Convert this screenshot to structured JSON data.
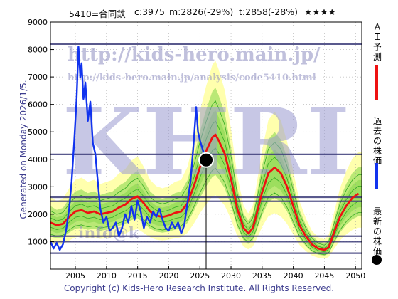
{
  "header": {
    "code_name": "5410=合同鉄",
    "current": "c:3975",
    "min_prediction": "m:2826(-29%)",
    "target": "t:2858(-28%)",
    "rating": "★★★★"
  },
  "generated_label": "Generated on Monday 2026/1/5.",
  "copyright": "Copyright (c) Kids-Hero Research Institute. All Rights Reserved.",
  "watermarks": {
    "url": "http://kids-hero.main.jp/",
    "analysis_url": "http://kids-hero.main.jp/analysis/code5410.html",
    "big_letters": "KHRI",
    "info": "info@k"
  },
  "legend": {
    "ai_label": "ＡＩ予測",
    "past_label": "過去の株価",
    "latest_label": "最新の株価"
  },
  "colors": {
    "ai": "#ee1111",
    "past": "#1133ee",
    "latest": "#000000",
    "bands": "#66cc33",
    "yellow": "#ffff99",
    "hlines": "#3d3d7a",
    "watermark": "#8d8dc0"
  },
  "chart_data": {
    "type": "line",
    "xlim": [
      2001,
      2051
    ],
    "ylim": [
      0,
      9000
    ],
    "x_ticks": [
      2005,
      2010,
      2015,
      2020,
      2025,
      2030,
      2035,
      2040,
      2045,
      2050
    ],
    "y_ticks": [
      1000,
      2000,
      3000,
      4000,
      5000,
      6000,
      7000,
      8000,
      9000
    ],
    "horizontal_lines": [
      8200,
      4180,
      2620,
      2470,
      1200,
      1000,
      580
    ],
    "latest_point": {
      "x": 2026.0,
      "y": 3975
    },
    "past_price": [
      [
        2001.0,
        1000
      ],
      [
        2001.5,
        750
      ],
      [
        2002.0,
        950
      ],
      [
        2002.5,
        700
      ],
      [
        2003.0,
        900
      ],
      [
        2003.5,
        1400
      ],
      [
        2004.0,
        2200
      ],
      [
        2004.4,
        3200
      ],
      [
        2004.8,
        4600
      ],
      [
        2005.2,
        6200
      ],
      [
        2005.5,
        8100
      ],
      [
        2005.8,
        7000
      ],
      [
        2006.0,
        7500
      ],
      [
        2006.3,
        6200
      ],
      [
        2006.6,
        6800
      ],
      [
        2007.0,
        5400
      ],
      [
        2007.4,
        6100
      ],
      [
        2007.8,
        4600
      ],
      [
        2008.2,
        4200
      ],
      [
        2008.6,
        3200
      ],
      [
        2009.0,
        2200
      ],
      [
        2009.5,
        1700
      ],
      [
        2010.0,
        1900
      ],
      [
        2010.5,
        1400
      ],
      [
        2011.0,
        1500
      ],
      [
        2011.5,
        1700
      ],
      [
        2012.0,
        1200
      ],
      [
        2012.5,
        1500
      ],
      [
        2013.0,
        2000
      ],
      [
        2013.5,
        1700
      ],
      [
        2014.0,
        2300
      ],
      [
        2014.5,
        1800
      ],
      [
        2015.0,
        2500
      ],
      [
        2015.5,
        2100
      ],
      [
        2016.0,
        1500
      ],
      [
        2016.5,
        1900
      ],
      [
        2017.0,
        1700
      ],
      [
        2017.5,
        2100
      ],
      [
        2018.0,
        1900
      ],
      [
        2018.5,
        2200
      ],
      [
        2019.0,
        1800
      ],
      [
        2019.5,
        1500
      ],
      [
        2020.0,
        1400
      ],
      [
        2020.5,
        1700
      ],
      [
        2021.0,
        1500
      ],
      [
        2021.5,
        1700
      ],
      [
        2022.0,
        1300
      ],
      [
        2022.5,
        1600
      ],
      [
        2023.0,
        2400
      ],
      [
        2023.5,
        3200
      ],
      [
        2024.0,
        4600
      ],
      [
        2024.4,
        5900
      ],
      [
        2024.7,
        5000
      ],
      [
        2025.0,
        4700
      ],
      [
        2025.4,
        4400
      ],
      [
        2025.8,
        4100
      ],
      [
        2026.0,
        3975
      ]
    ],
    "ai_prediction": [
      [
        2001.0,
        1700
      ],
      [
        2002.0,
        1600
      ],
      [
        2003.0,
        1650
      ],
      [
        2004.0,
        1900
      ],
      [
        2005.0,
        2100
      ],
      [
        2006.0,
        2150
      ],
      [
        2007.0,
        2050
      ],
      [
        2008.0,
        2100
      ],
      [
        2009.0,
        2000
      ],
      [
        2010.0,
        2050
      ],
      [
        2011.0,
        2100
      ],
      [
        2012.0,
        2250
      ],
      [
        2013.0,
        2350
      ],
      [
        2014.0,
        2550
      ],
      [
        2015.0,
        2650
      ],
      [
        2016.0,
        2400
      ],
      [
        2017.0,
        2100
      ],
      [
        2018.0,
        1950
      ],
      [
        2019.0,
        1900
      ],
      [
        2020.0,
        1950
      ],
      [
        2021.0,
        2050
      ],
      [
        2022.0,
        2100
      ],
      [
        2023.0,
        2400
      ],
      [
        2024.0,
        3000
      ],
      [
        2025.0,
        3700
      ],
      [
        2026.0,
        4300
      ],
      [
        2027.0,
        4800
      ],
      [
        2027.5,
        4900
      ],
      [
        2028.0,
        4700
      ],
      [
        2029.0,
        4200
      ],
      [
        2030.0,
        3300
      ],
      [
        2031.0,
        2200
      ],
      [
        2032.0,
        1500
      ],
      [
        2032.8,
        1300
      ],
      [
        2033.5,
        1500
      ],
      [
        2034.0,
        1900
      ],
      [
        2035.0,
        2800
      ],
      [
        2036.0,
        3500
      ],
      [
        2037.0,
        3700
      ],
      [
        2038.0,
        3500
      ],
      [
        2039.0,
        3000
      ],
      [
        2040.0,
        2300
      ],
      [
        2041.0,
        1600
      ],
      [
        2042.0,
        1200
      ],
      [
        2043.0,
        900
      ],
      [
        2044.0,
        750
      ],
      [
        2045.0,
        700
      ],
      [
        2045.7,
        800
      ],
      [
        2046.5,
        1300
      ],
      [
        2047.5,
        1900
      ],
      [
        2048.5,
        2300
      ],
      [
        2049.5,
        2600
      ],
      [
        2050.5,
        2750
      ]
    ]
  }
}
